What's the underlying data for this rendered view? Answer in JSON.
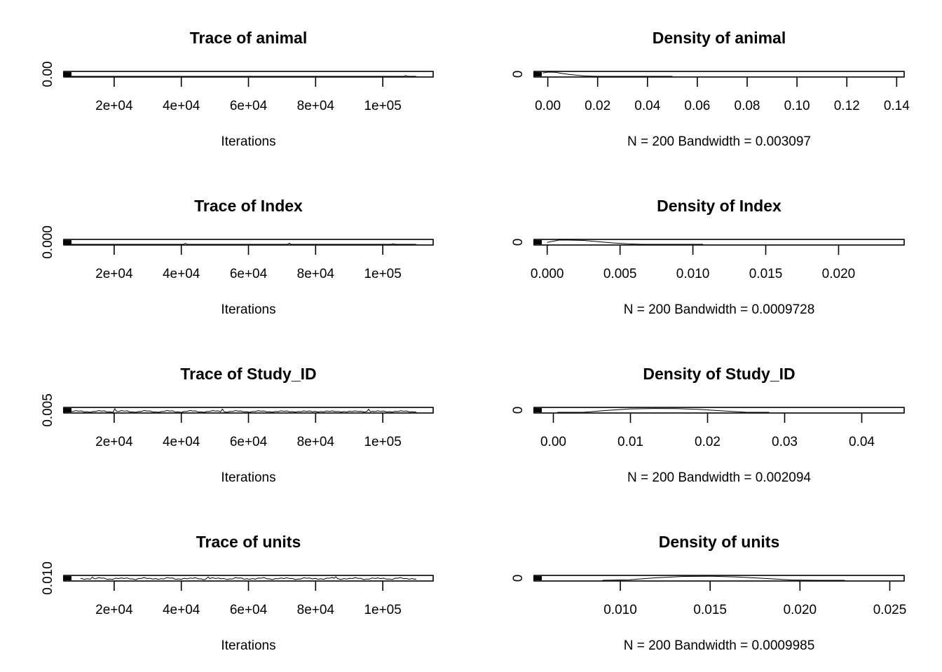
{
  "chart_data": [
    {
      "type": "line",
      "kind": "trace",
      "title": "Trace of animal",
      "xlabel": "Iterations",
      "ylabel": "",
      "xlim": [
        5000,
        115000
      ],
      "xticks": [
        20000,
        40000,
        60000,
        80000,
        100000
      ],
      "xtick_labels": [
        "2e+04",
        "4e+04",
        "6e+04",
        "8e+04",
        "1e+05"
      ],
      "yticks": [
        0
      ],
      "ytick_labels": [
        "0.00"
      ],
      "ylim": [
        0,
        0.15
      ],
      "series": [
        {
          "x_start": 5500,
          "x_step": 525,
          "y_base": 0.0026,
          "y_amp": 0.0022,
          "spikes": [
            {
              "x": 107000,
              "y": 0.04
            },
            {
              "x": 60500,
              "y": 0.02
            },
            {
              "x": 87000,
              "y": 0.018
            }
          ]
        }
      ]
    },
    {
      "type": "line",
      "kind": "density",
      "title": "Density of animal",
      "xlabel": "N = 200   Bandwidth = 0.003097",
      "ylabel": "",
      "xlim": [
        -0.0055,
        0.143
      ],
      "xticks": [
        0,
        0.02,
        0.04,
        0.06,
        0.08,
        0.1,
        0.12,
        0.14
      ],
      "xtick_labels": [
        "0.00",
        "0.02",
        "0.04",
        "0.06",
        "0.08",
        "0.10",
        "0.12",
        "0.14"
      ],
      "yticks": [
        0
      ],
      "ytick_labels": [
        "0"
      ],
      "ylim": [
        0,
        130
      ],
      "curve": {
        "x": [
          -0.002,
          0,
          0.003,
          0.006,
          0.01,
          0.015,
          0.02,
          0.025,
          0.03,
          0.04,
          0.05
        ],
        "y": [
          95,
          120,
          110,
          80,
          50,
          25,
          12,
          6,
          3,
          1,
          0
        ]
      }
    },
    {
      "type": "line",
      "kind": "trace",
      "title": "Trace of Index",
      "xlabel": "Iterations",
      "ylabel": "",
      "xlim": [
        5000,
        115000
      ],
      "xticks": [
        20000,
        40000,
        60000,
        80000,
        100000
      ],
      "xtick_labels": [
        "2e+04",
        "4e+04",
        "6e+04",
        "8e+04",
        "1e+05"
      ],
      "yticks": [
        0
      ],
      "ytick_labels": [
        "0.000"
      ],
      "ylim": [
        0,
        0.025
      ],
      "series": [
        {
          "x_start": 5500,
          "x_step": 525,
          "y_base": 0.0015,
          "y_amp": 0.0012,
          "spikes": [
            {
              "x": 41000,
              "y": 0.0075
            },
            {
              "x": 72000,
              "y": 0.008
            },
            {
              "x": 103000,
              "y": 0.006
            }
          ]
        }
      ]
    },
    {
      "type": "line",
      "kind": "density",
      "title": "Density of Index",
      "xlabel": "N = 200   Bandwidth = 0.0009728",
      "ylabel": "",
      "xlim": [
        -0.0009,
        0.0245
      ],
      "xticks": [
        0,
        0.005,
        0.01,
        0.015,
        0.02
      ],
      "xtick_labels": [
        "0.000",
        "0.005",
        "0.010",
        "0.015",
        "0.020"
      ],
      "yticks": [
        0
      ],
      "ytick_labels": [
        "0"
      ],
      "ylim": [
        0,
        420
      ],
      "curve": {
        "x": [
          0,
          0.0008,
          0.0015,
          0.0025,
          0.0035,
          0.0045,
          0.0055,
          0.0065,
          0.0075,
          0.009,
          0.0107
        ],
        "y": [
          200,
          380,
          390,
          340,
          250,
          160,
          90,
          45,
          20,
          6,
          0
        ]
      }
    },
    {
      "type": "line",
      "kind": "trace",
      "title": "Trace of Study_ID",
      "xlabel": "Iterations",
      "ylabel": "",
      "xlim": [
        5000,
        115000
      ],
      "xticks": [
        20000,
        40000,
        60000,
        80000,
        100000
      ],
      "xtick_labels": [
        "2e+04",
        "4e+04",
        "6e+04",
        "8e+04",
        "1e+05"
      ],
      "yticks": [
        0.005
      ],
      "ytick_labels": [
        "0.005"
      ],
      "ylim": [
        0,
        0.05
      ],
      "series": [
        {
          "x_start": 5500,
          "x_step": 525,
          "y_base": 0.014,
          "y_amp": 0.009,
          "spikes": [
            {
              "x": 20000,
              "y": 0.038
            },
            {
              "x": 52000,
              "y": 0.035
            },
            {
              "x": 96000,
              "y": 0.034
            }
          ]
        }
      ]
    },
    {
      "type": "line",
      "kind": "density",
      "title": "Density of Study_ID",
      "xlabel": "N = 200   Bandwidth = 0.002094",
      "ylabel": "",
      "xlim": [
        -0.0025,
        0.0455
      ],
      "xticks": [
        0,
        0.01,
        0.02,
        0.03,
        0.04
      ],
      "xtick_labels": [
        "0.00",
        "0.01",
        "0.02",
        "0.03",
        "0.04"
      ],
      "yticks": [
        0
      ],
      "ytick_labels": [
        "0"
      ],
      "ylim": [
        0,
        75
      ],
      "curve": {
        "x": [
          0.0005,
          0.004,
          0.007,
          0.01,
          0.013,
          0.016,
          0.019,
          0.022,
          0.025,
          0.028
        ],
        "y": [
          1,
          10,
          35,
          55,
          60,
          58,
          48,
          28,
          10,
          1
        ]
      }
    },
    {
      "type": "line",
      "kind": "trace",
      "title": "Trace of units",
      "xlabel": "Iterations",
      "ylabel": "",
      "xlim": [
        5000,
        115000
      ],
      "xticks": [
        20000,
        40000,
        60000,
        80000,
        100000
      ],
      "xtick_labels": [
        "2e+04",
        "4e+04",
        "6e+04",
        "8e+04",
        "1e+05"
      ],
      "yticks": [
        0.01
      ],
      "ytick_labels": [
        "0.010"
      ],
      "ylim": [
        0.0045,
        0.026
      ],
      "series": [
        {
          "x_start": 10000,
          "x_step": 500,
          "y_base": 0.0138,
          "y_amp": 0.0045,
          "spikes": [
            {
              "x": 13500,
              "y": 0.02
            },
            {
              "x": 48000,
              "y": 0.02
            },
            {
              "x": 86000,
              "y": 0.021
            }
          ]
        }
      ]
    },
    {
      "type": "line",
      "kind": "density",
      "title": "Density of units",
      "xlabel": "N = 200   Bandwidth = 0.0009985",
      "ylabel": "",
      "xlim": [
        0.0052,
        0.0258
      ],
      "xticks": [
        0.01,
        0.015,
        0.02,
        0.025
      ],
      "xtick_labels": [
        "0.010",
        "0.015",
        "0.020",
        "0.025"
      ],
      "yticks": [
        0
      ],
      "ytick_labels": [
        "0"
      ],
      "ylim": [
        0,
        260
      ],
      "curve": {
        "x": [
          0.009,
          0.0105,
          0.012,
          0.0135,
          0.015,
          0.0165,
          0.018,
          0.0195,
          0.021,
          0.0225
        ],
        "y": [
          5,
          60,
          150,
          210,
          220,
          190,
          120,
          50,
          15,
          1
        ]
      }
    }
  ]
}
